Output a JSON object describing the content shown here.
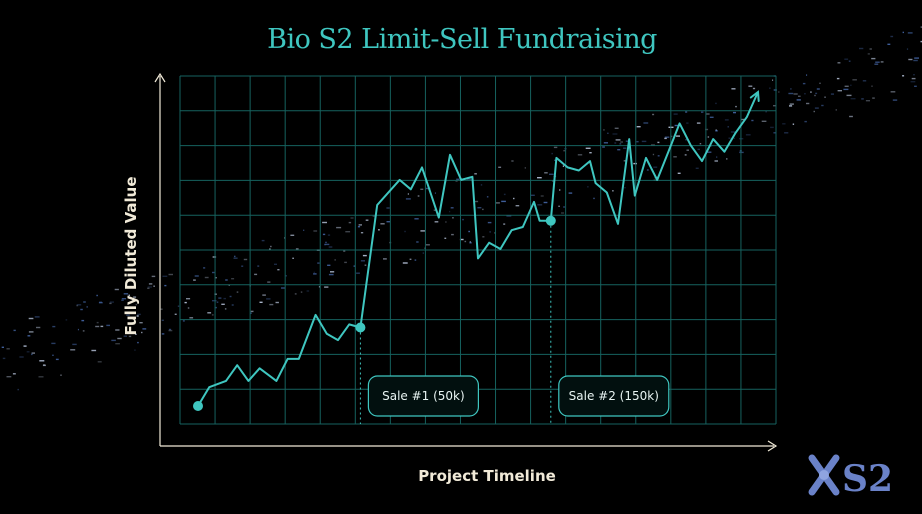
{
  "colors": {
    "background": "#000000",
    "accent": "#3fc6c0",
    "grid": "#16625f",
    "axis": "#f1ead8",
    "logo": "#6a82c8"
  },
  "chart_data": {
    "type": "line",
    "title": "Bio S2 Limit-Sell Fundraising",
    "xlabel": "Project Timeline",
    "ylabel": "Fully Diluted Value",
    "grid": true,
    "axis_arrows": true,
    "xlim": [
      0,
      100
    ],
    "ylim": [
      0,
      100
    ],
    "series": [
      {
        "x": [
          0,
          2,
          5,
          7,
          9,
          11,
          14,
          16,
          18,
          21,
          23,
          25,
          27,
          29,
          32,
          36,
          38,
          40,
          43,
          45,
          47,
          49,
          50,
          52,
          54,
          56,
          58,
          60,
          61,
          63,
          64,
          66,
          68,
          70,
          71,
          73,
          75,
          77,
          78,
          80,
          82,
          84,
          86,
          88,
          90,
          92,
          94,
          96,
          98,
          100
        ],
        "y": [
          0,
          6,
          8,
          13,
          8,
          12,
          8,
          15,
          15,
          29,
          23,
          21,
          26,
          25,
          64,
          72,
          69,
          76,
          60,
          80,
          72,
          73,
          47,
          52,
          50,
          56,
          57,
          65,
          59,
          59,
          79,
          76,
          75,
          78,
          71,
          68,
          58,
          85,
          67,
          79,
          72,
          81,
          90,
          83,
          78,
          85,
          81,
          87,
          92,
          100
        ]
      }
    ],
    "markers": [
      {
        "x": 0,
        "y": 0
      },
      {
        "x": 29,
        "y": 25
      },
      {
        "x": 63,
        "y": 59
      }
    ],
    "callouts": [
      {
        "x": 29,
        "label": "Sale #1 (50k)"
      },
      {
        "x": 63,
        "label": "Sale #2 (150k)"
      }
    ]
  },
  "logo": {
    "icon": "s2-logo-icon",
    "text": "S2"
  }
}
